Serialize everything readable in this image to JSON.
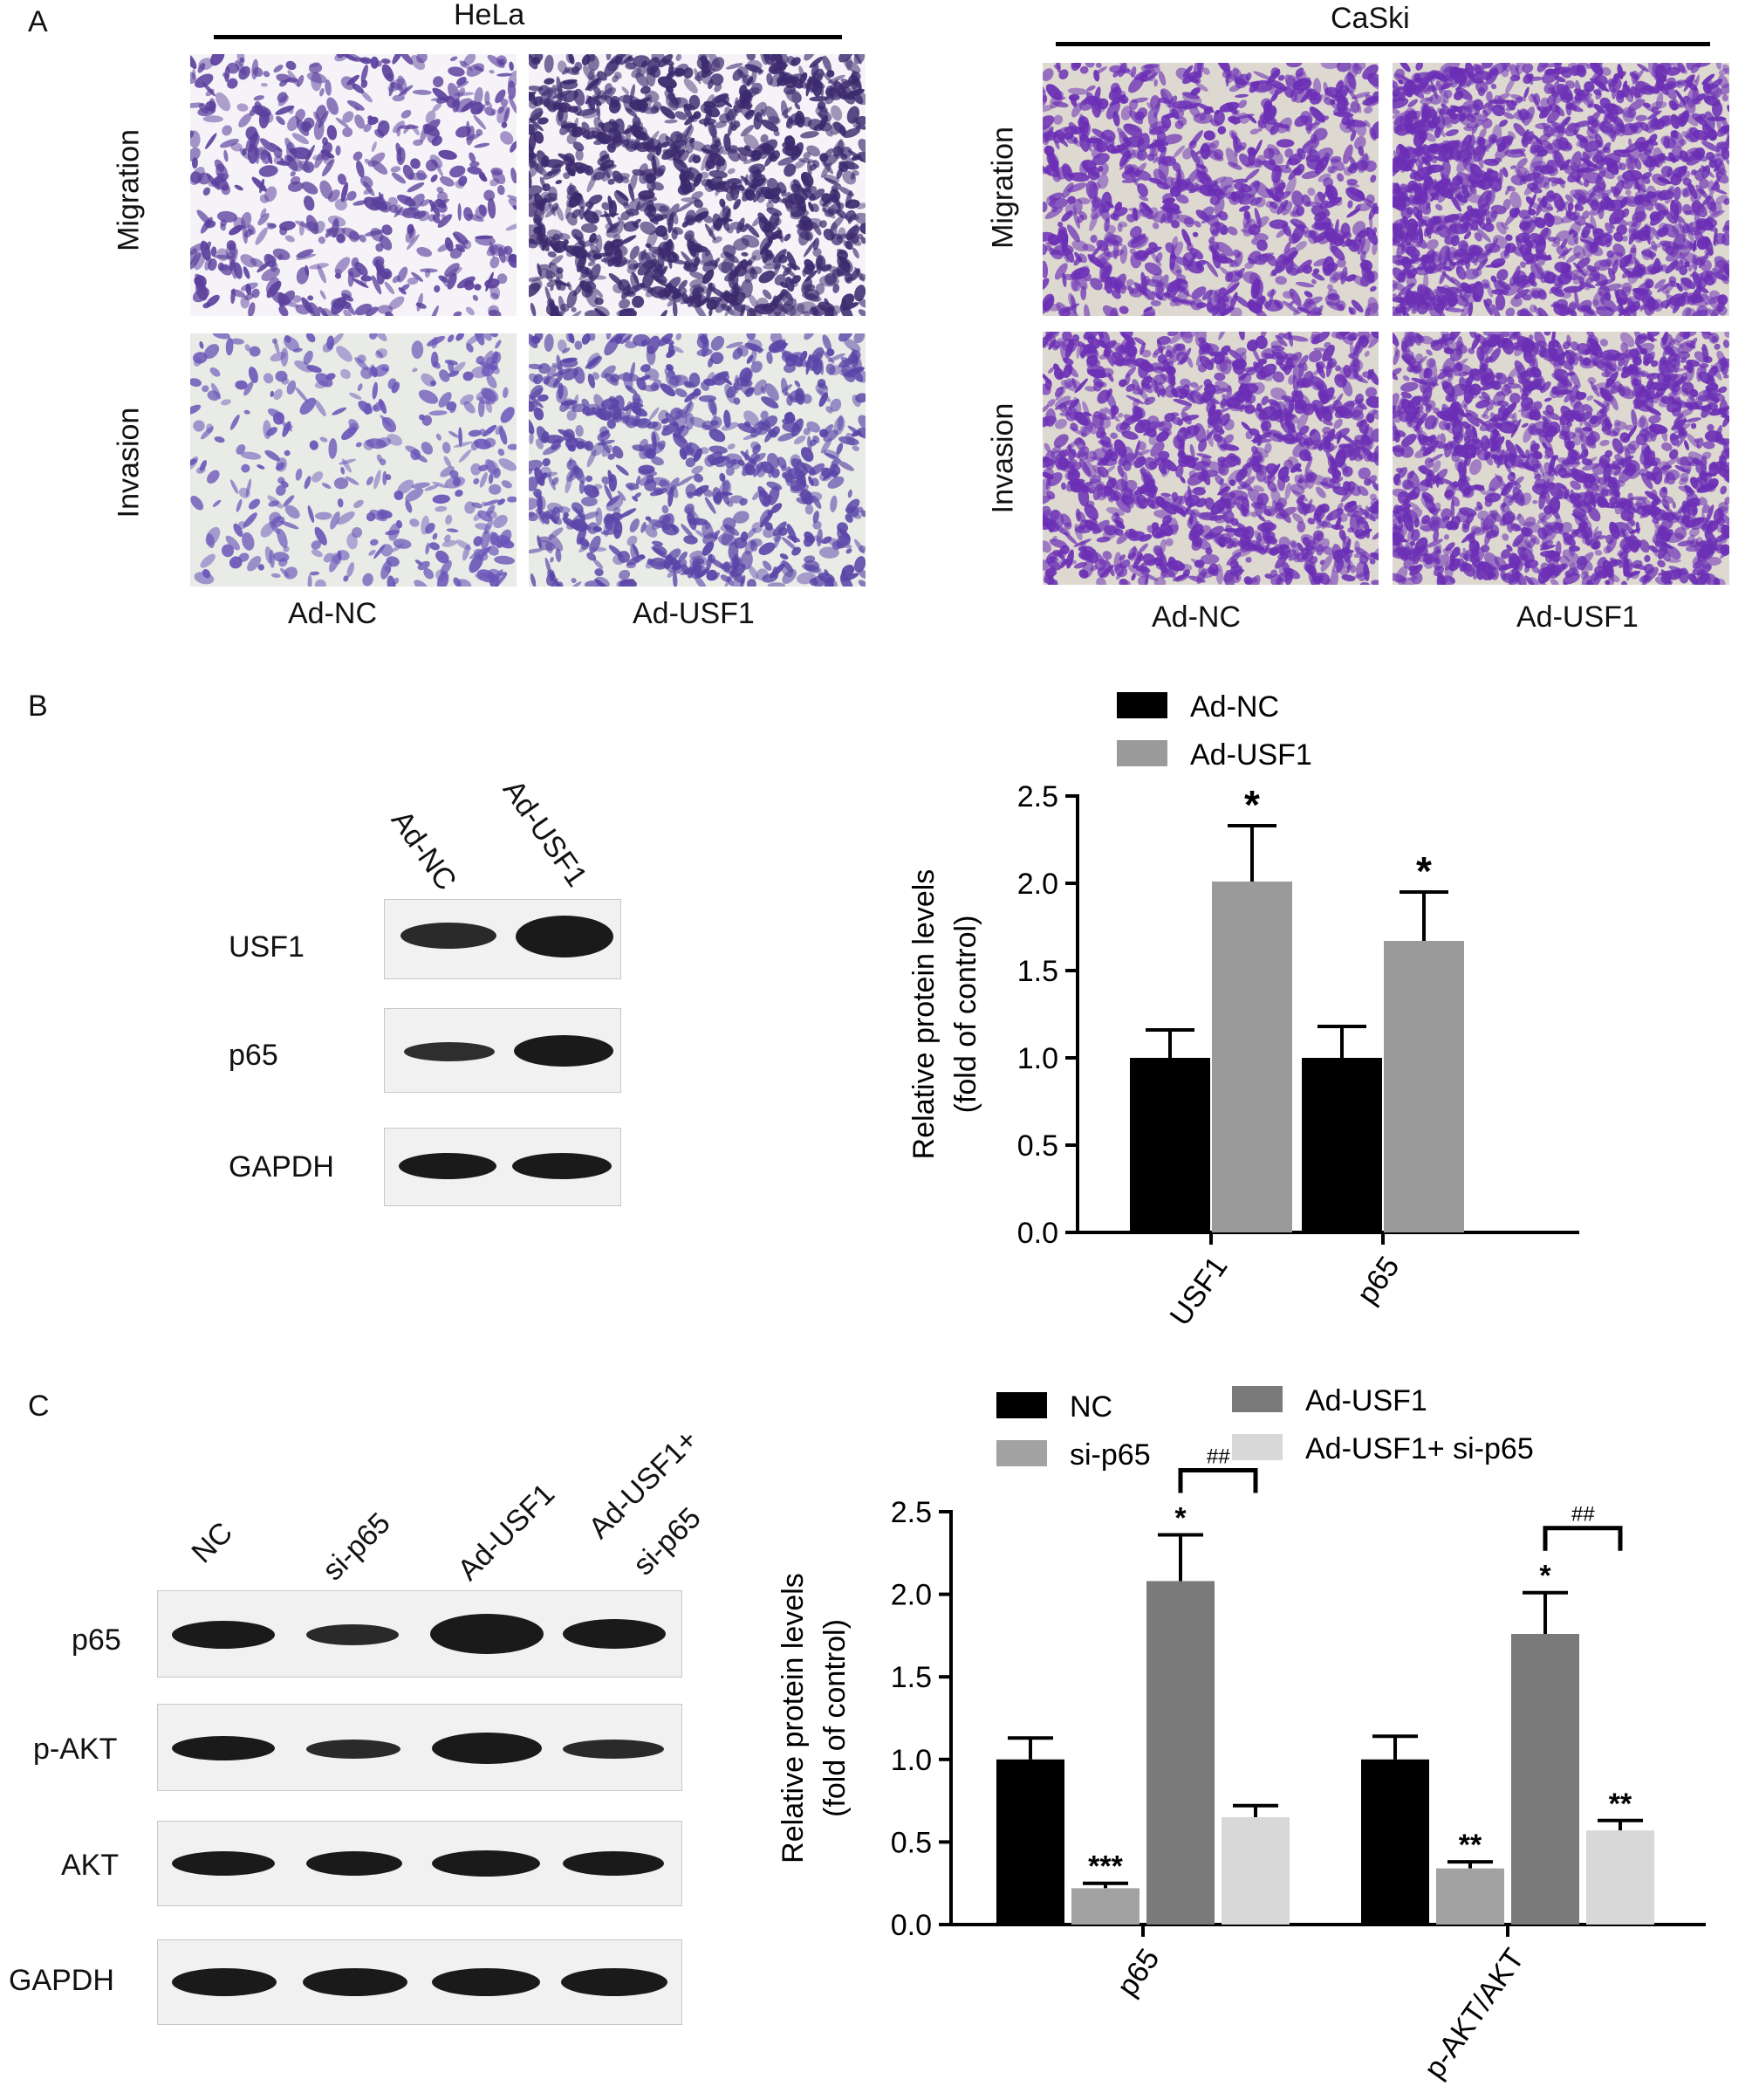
{
  "panel_a": {
    "letter": "A",
    "left_group": {
      "title": "HeLa",
      "rows": [
        "Migration",
        "Invasion"
      ],
      "columns": [
        "Ad-NC",
        "Ad-USF1"
      ],
      "stain_color": "#5a3f9c",
      "background_color_row1": "#f5f3f8",
      "background_color_row2": "#e8ebe6"
    },
    "right_group": {
      "title": "CaSki",
      "rows": [
        "Migration",
        "Invasion"
      ],
      "columns": [
        "Ad-NC",
        "Ad-USF1"
      ],
      "stain_color": "#6b2fb5",
      "background_color": "#ddd8d0"
    }
  },
  "panel_b": {
    "letter": "B",
    "blot": {
      "lanes": [
        "Ad-NC",
        "Ad-USF1"
      ],
      "rows": [
        "USF1",
        "p65",
        "GAPDH"
      ]
    },
    "chart_data": {
      "type": "bar",
      "categories": [
        "USF1",
        "p65"
      ],
      "series": [
        {
          "name": "Ad-NC",
          "color": "#000000",
          "values": [
            1.0,
            1.0
          ],
          "errors": [
            0.16,
            0.18
          ]
        },
        {
          "name": "Ad-USF1",
          "color": "#9a9a9a",
          "values": [
            2.01,
            1.67
          ],
          "errors": [
            0.32,
            0.28
          ]
        }
      ],
      "significance": [
        [
          "",
          "*"
        ],
        [
          "",
          "*"
        ]
      ],
      "ylabel": "Relative protein levels",
      "ylabel2": "(fold of control)",
      "ylim": [
        0,
        2.5
      ],
      "yticks": [
        "0.0",
        "0.5",
        "1.0",
        "1.5",
        "2.0",
        "2.5"
      ],
      "legend": "top"
    }
  },
  "panel_c": {
    "letter": "C",
    "blot": {
      "lanes": [
        "NC",
        "si-p65",
        "Ad-USF1",
        "Ad-USF1+",
        "si-p65"
      ],
      "rows": [
        "p65",
        "p-AKT",
        "AKT",
        "GAPDH"
      ]
    },
    "chart_data": {
      "type": "bar",
      "categories": [
        "p65",
        "p-AKT/AKT"
      ],
      "series": [
        {
          "name": "NC",
          "color": "#000000",
          "values": [
            1.0,
            1.0
          ],
          "errors": [
            0.13,
            0.14
          ]
        },
        {
          "name": "si-p65",
          "color": "#a2a2a2",
          "values": [
            0.22,
            0.34
          ],
          "errors": [
            0.03,
            0.04
          ]
        },
        {
          "name": "Ad-USF1",
          "color": "#7a7a7a",
          "values": [
            2.08,
            1.76
          ],
          "errors": [
            0.28,
            0.25
          ]
        },
        {
          "name": "Ad-USF1+ si-p65",
          "color": "#d8d8d8",
          "values": [
            0.65,
            0.57
          ],
          "errors": [
            0.07,
            0.06
          ]
        }
      ],
      "significance": [
        [
          "",
          "***",
          "*",
          ""
        ],
        [
          "",
          "**",
          "*",
          "**"
        ]
      ],
      "bracket_label": "##",
      "ylabel": "Relative protein levels",
      "ylabel2": "(fold of control)",
      "ylim": [
        0,
        2.5
      ],
      "yticks": [
        "0.0",
        "0.5",
        "1.0",
        "1.5",
        "2.0",
        "2.5"
      ],
      "legend": "top"
    }
  }
}
